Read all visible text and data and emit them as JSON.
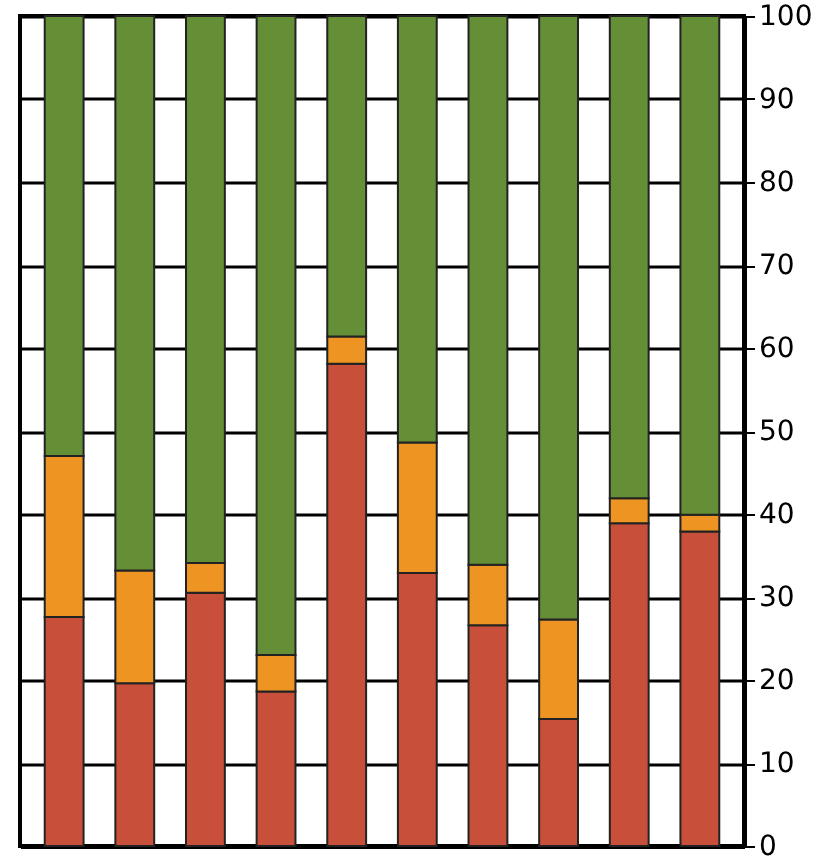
{
  "chart_data": {
    "type": "bar",
    "stacked": true,
    "categories": [
      null,
      null,
      null,
      null,
      null,
      null,
      null,
      null,
      null,
      null
    ],
    "series": [
      {
        "color": "#c8503a",
        "values": [
          27.6,
          19.6,
          30.5,
          18.6,
          58.1,
          32.9,
          26.6,
          15.3,
          38.9,
          37.9
        ]
      },
      {
        "color": "#ee9422",
        "values": [
          19.4,
          13.6,
          3.6,
          4.4,
          3.3,
          15.7,
          7.3,
          12.0,
          3.0,
          2.0
        ]
      },
      {
        "color": "#648f37",
        "values": [
          53.0,
          66.8,
          65.9,
          77.0,
          38.6,
          51.4,
          66.1,
          72.7,
          58.1,
          60.1
        ]
      }
    ],
    "ylim": [
      0,
      100
    ],
    "yticks": [
      0,
      10,
      20,
      30,
      40,
      50,
      60,
      70,
      80,
      90,
      100
    ],
    "grid": "y"
  }
}
